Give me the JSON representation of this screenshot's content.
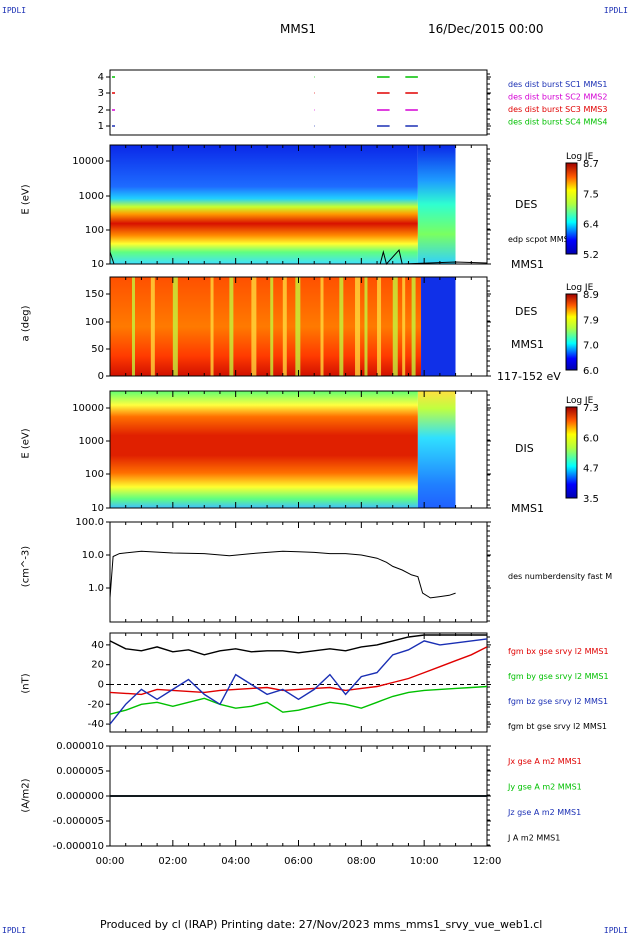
{
  "header": {
    "corner_tl": "IPDLI",
    "corner_tr": "IPDLI",
    "corner_bl": "IPDLI",
    "corner_br": "IPDLI",
    "spacecraft": "MMS1",
    "date": "16/Dec/2015 00:00"
  },
  "footer": {
    "text": "Produced by cl (IRAP)   Printing date: 27/Nov/2023   mms_mms1_srvy_vue_web1.cl"
  },
  "colors": {
    "blue": "#1a2fb4",
    "magenta": "#d400d4",
    "red": "#e00000",
    "green": "#00c000",
    "black": "#000000"
  },
  "chart_data": [
    {
      "type": "table",
      "panel": "burst",
      "y_ticks": [
        "4",
        "3",
        "2",
        "1"
      ],
      "legend": [
        {
          "label": "des dist burst SC1 MMS1",
          "color": "#1a2fb4"
        },
        {
          "label": "des dist burst SC2 MMS2",
          "color": "#d400d4"
        },
        {
          "label": "des dist burst SC3 MMS3",
          "color": "#e00000"
        },
        {
          "label": "des dist burst SC4 MMS4",
          "color": "#00c000"
        }
      ],
      "intervals_hours": [
        [
          8.5,
          8.9
        ],
        [
          9.4,
          9.8
        ]
      ]
    },
    {
      "type": "heatmap",
      "panel": "des_energy",
      "ylabel": "E (eV)",
      "yscale": "log",
      "y_ticks": [
        "10000",
        "1000",
        "100",
        "10"
      ],
      "ylim": [
        10,
        25000
      ],
      "right_label": "DES",
      "right_label2": "edp scpot MMS1",
      "right_label3": "MMS1",
      "colorbar": {
        "title": "Log JE",
        "ticks": [
          "8.7",
          "7.5",
          "6.4",
          "5.2"
        ]
      }
    },
    {
      "type": "heatmap",
      "panel": "des_pitch",
      "ylabel": "a (deg)",
      "y_ticks": [
        "150",
        "100",
        "50",
        "0"
      ],
      "ylim": [
        0,
        180
      ],
      "right_label": "DES",
      "right_label2": "MMS1",
      "right_label3": "117-152 eV",
      "colorbar": {
        "title": "Log JE",
        "ticks": [
          "8.9",
          "7.9",
          "7.0",
          "6.0"
        ]
      }
    },
    {
      "type": "heatmap",
      "panel": "dis_energy",
      "ylabel": "E (eV)",
      "yscale": "log",
      "y_ticks": [
        "10000",
        "1000",
        "100",
        "10"
      ],
      "ylim": [
        10,
        25000
      ],
      "right_label": "DIS",
      "right_label2": "MMS1",
      "colorbar": {
        "title": "Log JE",
        "ticks": [
          "7.3",
          "6.0",
          "4.7",
          "3.5"
        ]
      }
    },
    {
      "type": "line",
      "panel": "density",
      "ylabel": "(cm^-3)",
      "yscale": "log",
      "y_ticks": [
        "100.0",
        "10.0",
        "1.0"
      ],
      "ylim": [
        0.3,
        100
      ],
      "x": [
        0.0,
        0.1,
        0.3,
        1.0,
        2.0,
        3.0,
        3.8,
        4.5,
        5.0,
        5.5,
        6.0,
        6.5,
        7.0,
        7.5,
        8.0,
        8.5,
        8.8,
        9.0,
        9.3,
        9.6,
        9.8,
        9.95,
        10.2,
        10.5,
        10.8,
        11.0
      ],
      "values": [
        0.5,
        9,
        11,
        13,
        11.5,
        11,
        9.5,
        11,
        12,
        13,
        12.5,
        12,
        11,
        11,
        10,
        8,
        6,
        4.5,
        3.5,
        2.5,
        2.2,
        0.7,
        0.5,
        0.55,
        0.6,
        0.7
      ],
      "legend": [
        {
          "label": "des numberdensity fast M",
          "color": "#000000"
        }
      ]
    },
    {
      "type": "line",
      "panel": "fgm",
      "ylabel": "(nT)",
      "y_ticks": [
        "40",
        "20",
        "0",
        "-20",
        "-40"
      ],
      "ylim": [
        -48,
        52
      ],
      "x": [
        0,
        0.5,
        1,
        1.5,
        2,
        2.5,
        3,
        3.5,
        4,
        4.5,
        5,
        5.5,
        6,
        6.5,
        7,
        7.5,
        8,
        8.5,
        9,
        9.5,
        10,
        10.5,
        11,
        11.5,
        12
      ],
      "series": [
        {
          "name": "fgm bx gse srvy l2 MMS1",
          "color": "#e00000",
          "values": [
            -8,
            -9,
            -10,
            -5,
            -6,
            -7,
            -8,
            -6,
            -5,
            -4,
            -3,
            -6,
            -5,
            -4,
            -3,
            -6,
            -4,
            -2,
            2,
            6,
            12,
            18,
            24,
            30,
            38
          ]
        },
        {
          "name": "fgm by gse srvy l2 MMS1",
          "color": "#00c000",
          "values": [
            -30,
            -26,
            -20,
            -18,
            -22,
            -18,
            -14,
            -20,
            -24,
            -22,
            -18,
            -28,
            -26,
            -22,
            -18,
            -20,
            -24,
            -18,
            -12,
            -8,
            -6,
            -5,
            -4,
            -3,
            -2
          ]
        },
        {
          "name": "fgm bz gse srvy l2 MMS1",
          "color": "#1a2fb4",
          "values": [
            -40,
            -20,
            -5,
            -15,
            -5,
            5,
            -10,
            -20,
            10,
            0,
            -10,
            -5,
            -15,
            -5,
            10,
            -10,
            8,
            12,
            30,
            35,
            44,
            40,
            42,
            44,
            46
          ]
        },
        {
          "name": "fgm bt gse srvy l2 MMS1",
          "color": "#000000",
          "values": [
            44,
            36,
            34,
            38,
            33,
            35,
            30,
            34,
            36,
            33,
            34,
            34,
            32,
            34,
            36,
            34,
            38,
            40,
            44,
            48,
            50,
            50,
            50,
            50,
            50
          ]
        }
      ]
    },
    {
      "type": "line",
      "panel": "current",
      "ylabel": "(A/m2)",
      "y_ticks": [
        "0.000010",
        "0.000005",
        "0.000000",
        "-0.000005",
        "-0.000010"
      ],
      "ylim": [
        -1e-05,
        1e-05
      ],
      "x": [
        0,
        12
      ],
      "series": [
        {
          "name": "Jx gse A m2 MMS1",
          "color": "#e00000",
          "values": [
            0,
            0
          ]
        },
        {
          "name": "Jy gse A m2 MMS1",
          "color": "#00c000",
          "values": [
            0,
            0
          ]
        },
        {
          "name": "Jz gse A m2 MMS1",
          "color": "#1a2fb4",
          "values": [
            0,
            0
          ]
        },
        {
          "name": "J A m2 MMS1",
          "color": "#000000",
          "values": [
            0,
            0
          ]
        }
      ]
    }
  ],
  "x_axis": {
    "ticks": [
      "00:00",
      "02:00",
      "04:00",
      "06:00",
      "08:00",
      "10:00",
      "12:00"
    ],
    "xlim": [
      0,
      12
    ]
  }
}
